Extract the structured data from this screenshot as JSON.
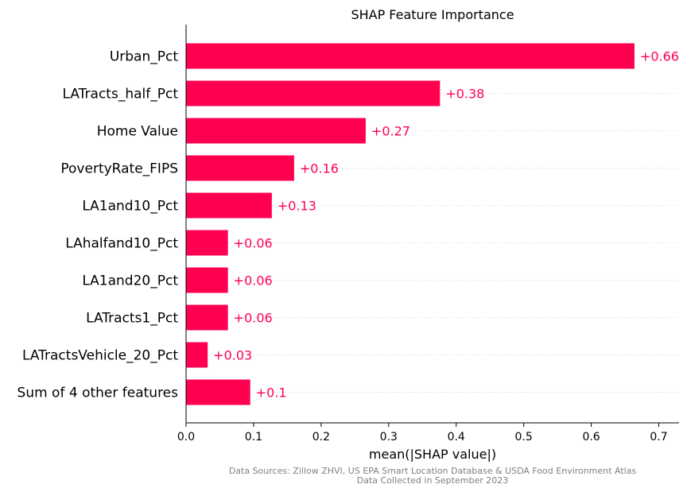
{
  "chart_data": {
    "type": "bar",
    "orientation": "horizontal",
    "title": "SHAP Feature Importance",
    "xlabel": "mean(|SHAP value|)",
    "ylabel": "",
    "xlim": [
      0,
      0.73
    ],
    "xticks": [
      0.0,
      0.1,
      0.2,
      0.3,
      0.4,
      0.5,
      0.6,
      0.7
    ],
    "xtick_labels": [
      "0.0",
      "0.1",
      "0.2",
      "0.3",
      "0.4",
      "0.5",
      "0.6",
      "0.7"
    ],
    "grid": "horizontal dotted per row",
    "categories": [
      "Urban_Pct",
      "LATracts_half_Pct",
      "Home Value",
      "PovertyRate_FIPS",
      "LA1and10_Pct",
      "LAhalfand10_Pct",
      "LA1and20_Pct",
      "LATracts1_Pct",
      "LATractsVehicle_20_Pct",
      "Sum of 4 other features"
    ],
    "values": [
      0.664,
      0.376,
      0.266,
      0.16,
      0.127,
      0.062,
      0.062,
      0.062,
      0.032,
      0.095
    ],
    "value_labels": [
      "+0.66",
      "+0.38",
      "+0.27",
      "+0.16",
      "+0.13",
      "+0.06",
      "+0.06",
      "+0.06",
      "+0.03",
      "+0.1"
    ],
    "bar_color": "#ff0051",
    "label_color": "#ff0051"
  },
  "footnote": {
    "line1": "Data Sources: Zillow ZHVI, US EPA Smart Location Database & USDA Food Environment Atlas",
    "line2": "Data Collected in September 2023"
  }
}
